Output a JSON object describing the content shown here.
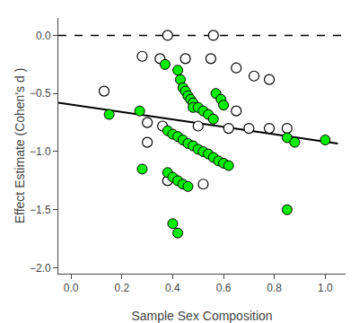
{
  "chart_data": {
    "type": "scatter",
    "xlabel": "Sample Sex Composition",
    "ylabel": "Effect Estimate (Cohen's d )",
    "series": [
      {
        "type": "scatter",
        "marker": "open circle",
        "color": "black",
        "x": [
          0.38,
          0.56,
          0.13,
          0.28,
          0.35,
          0.45,
          0.55,
          0.65,
          0.72,
          0.78,
          0.3,
          0.36,
          0.5,
          0.62,
          0.7,
          0.78,
          0.85,
          0.3,
          0.38,
          0.52,
          0.65
        ],
        "values": [
          0.0,
          0.0,
          -0.48,
          -0.18,
          -0.2,
          -0.2,
          -0.2,
          -0.28,
          -0.35,
          -0.38,
          -0.75,
          -0.78,
          -0.78,
          -0.8,
          -0.8,
          -0.8,
          -0.8,
          -0.92,
          -1.25,
          -1.28,
          -0.65
        ]
      },
      {
        "type": "scatter",
        "marker": "circle",
        "color": "#00ee00",
        "x": [
          0.15,
          0.27,
          0.37,
          0.42,
          0.43,
          0.44,
          0.45,
          0.46,
          0.47,
          0.48,
          0.48,
          0.5,
          0.52,
          0.54,
          0.56,
          0.57,
          0.59,
          0.6,
          0.38,
          0.4,
          0.42,
          0.44,
          0.46,
          0.48,
          0.5,
          0.52,
          0.54,
          0.56,
          0.58,
          0.6,
          0.62,
          0.28,
          0.38,
          0.4,
          0.42,
          0.44,
          0.46,
          0.85,
          0.88,
          0.85,
          1.0,
          0.4,
          0.42
        ],
        "values": [
          -0.68,
          -0.65,
          -0.25,
          -0.3,
          -0.38,
          -0.45,
          -0.48,
          -0.52,
          -0.55,
          -0.58,
          -0.62,
          -0.62,
          -0.65,
          -0.68,
          -0.72,
          -0.5,
          -0.55,
          -0.6,
          -0.82,
          -0.85,
          -0.87,
          -0.9,
          -0.93,
          -0.95,
          -0.98,
          -1.0,
          -1.02,
          -1.05,
          -1.08,
          -1.1,
          -1.12,
          -1.15,
          -1.18,
          -1.22,
          -1.25,
          -1.28,
          -1.3,
          -0.88,
          -0.92,
          -1.5,
          -0.9,
          -1.62,
          -1.7
        ]
      },
      {
        "type": "line",
        "color": "black",
        "line_style": "solid",
        "x": [
          -0.05,
          1.05
        ],
        "values": [
          -0.58,
          -0.93
        ]
      },
      {
        "type": "hline",
        "color": "black",
        "line_style": "dashed",
        "values": [
          0.0
        ]
      }
    ],
    "xlim": [
      -0.05,
      1.08
    ],
    "ylim": [
      -2.05,
      0.15
    ],
    "xticks": [
      {
        "value": 0,
        "label": "0.0"
      },
      0.2,
      0.4,
      0.6,
      0.8,
      {
        "value": 1.0,
        "label": "1.0"
      }
    ],
    "yticks": [
      {
        "value": 0,
        "label": "0.0"
      },
      {
        "value": -0.5,
        "label": "−0.5"
      },
      {
        "value": -1.0,
        "label": "−1.0"
      },
      {
        "value": -1.5,
        "label": "−1.5"
      },
      {
        "value": -2.0,
        "label": "−2.0"
      }
    ],
    "grid": false
  }
}
